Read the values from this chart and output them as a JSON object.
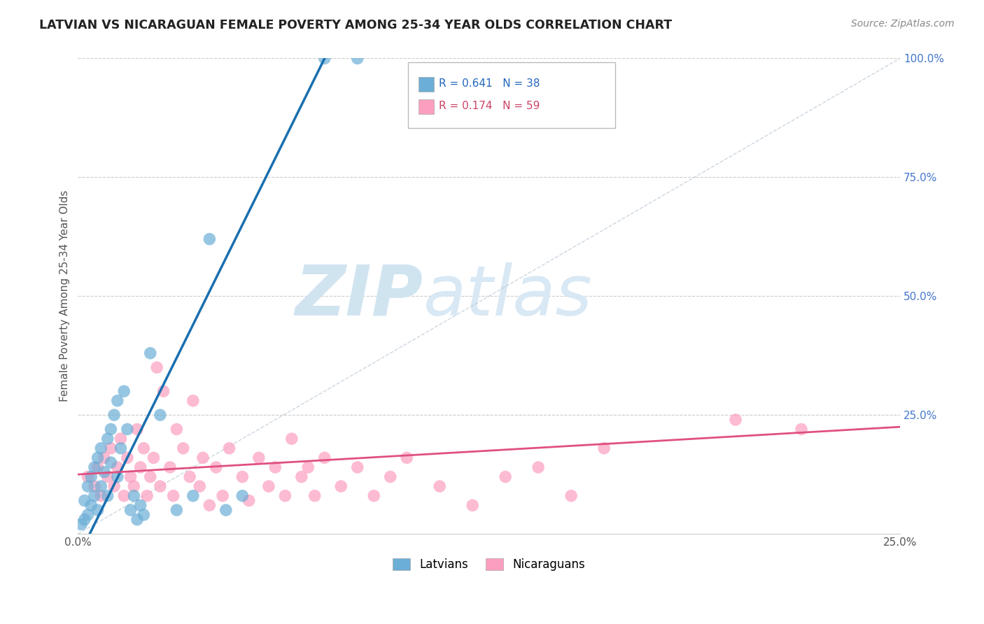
{
  "title": "LATVIAN VS NICARAGUAN FEMALE POVERTY AMONG 25-34 YEAR OLDS CORRELATION CHART",
  "source": "Source: ZipAtlas.com",
  "ylabel": "Female Poverty Among 25-34 Year Olds",
  "xlim": [
    0.0,
    0.25
  ],
  "ylim": [
    0.0,
    1.0
  ],
  "xticks": [
    0.0,
    0.25
  ],
  "xticklabels": [
    "0.0%",
    "25.0%"
  ],
  "yticks_right": [
    0.25,
    0.5,
    0.75,
    1.0
  ],
  "yticklabels_right": [
    "25.0%",
    "50.0%",
    "75.0%",
    "100.0%"
  ],
  "grid_yticks": [
    0.25,
    0.5,
    0.75,
    1.0
  ],
  "latvian_color": "#6baed6",
  "latvian_line_color": "#1a6faf",
  "nicaraguan_color": "#fc9ebf",
  "nicaraguan_line_color": "#e05080",
  "latvian_R": 0.641,
  "latvian_N": 38,
  "nicaraguan_R": 0.174,
  "nicaraguan_N": 59,
  "latvian_scatter": [
    [
      0.001,
      0.02
    ],
    [
      0.002,
      0.03
    ],
    [
      0.002,
      0.07
    ],
    [
      0.003,
      0.04
    ],
    [
      0.003,
      0.1
    ],
    [
      0.004,
      0.06
    ],
    [
      0.004,
      0.12
    ],
    [
      0.005,
      0.08
    ],
    [
      0.005,
      0.14
    ],
    [
      0.006,
      0.05
    ],
    [
      0.006,
      0.16
    ],
    [
      0.007,
      0.18
    ],
    [
      0.007,
      0.1
    ],
    [
      0.008,
      0.13
    ],
    [
      0.009,
      0.2
    ],
    [
      0.009,
      0.08
    ],
    [
      0.01,
      0.22
    ],
    [
      0.01,
      0.15
    ],
    [
      0.011,
      0.25
    ],
    [
      0.012,
      0.12
    ],
    [
      0.012,
      0.28
    ],
    [
      0.013,
      0.18
    ],
    [
      0.014,
      0.3
    ],
    [
      0.015,
      0.22
    ],
    [
      0.016,
      0.05
    ],
    [
      0.017,
      0.08
    ],
    [
      0.018,
      0.03
    ],
    [
      0.019,
      0.06
    ],
    [
      0.02,
      0.04
    ],
    [
      0.022,
      0.38
    ],
    [
      0.025,
      0.25
    ],
    [
      0.03,
      0.05
    ],
    [
      0.035,
      0.08
    ],
    [
      0.04,
      0.62
    ],
    [
      0.045,
      0.05
    ],
    [
      0.05,
      0.08
    ],
    [
      0.075,
      1.0
    ],
    [
      0.085,
      1.0
    ]
  ],
  "nicaraguan_scatter": [
    [
      0.003,
      0.12
    ],
    [
      0.005,
      0.1
    ],
    [
      0.006,
      0.14
    ],
    [
      0.007,
      0.08
    ],
    [
      0.008,
      0.16
    ],
    [
      0.009,
      0.12
    ],
    [
      0.01,
      0.18
    ],
    [
      0.011,
      0.1
    ],
    [
      0.012,
      0.14
    ],
    [
      0.013,
      0.2
    ],
    [
      0.014,
      0.08
    ],
    [
      0.015,
      0.16
    ],
    [
      0.016,
      0.12
    ],
    [
      0.017,
      0.1
    ],
    [
      0.018,
      0.22
    ],
    [
      0.019,
      0.14
    ],
    [
      0.02,
      0.18
    ],
    [
      0.021,
      0.08
    ],
    [
      0.022,
      0.12
    ],
    [
      0.023,
      0.16
    ],
    [
      0.024,
      0.35
    ],
    [
      0.025,
      0.1
    ],
    [
      0.026,
      0.3
    ],
    [
      0.028,
      0.14
    ],
    [
      0.029,
      0.08
    ],
    [
      0.03,
      0.22
    ],
    [
      0.032,
      0.18
    ],
    [
      0.034,
      0.12
    ],
    [
      0.035,
      0.28
    ],
    [
      0.037,
      0.1
    ],
    [
      0.038,
      0.16
    ],
    [
      0.04,
      0.06
    ],
    [
      0.042,
      0.14
    ],
    [
      0.044,
      0.08
    ],
    [
      0.046,
      0.18
    ],
    [
      0.05,
      0.12
    ],
    [
      0.052,
      0.07
    ],
    [
      0.055,
      0.16
    ],
    [
      0.058,
      0.1
    ],
    [
      0.06,
      0.14
    ],
    [
      0.063,
      0.08
    ],
    [
      0.065,
      0.2
    ],
    [
      0.068,
      0.12
    ],
    [
      0.07,
      0.14
    ],
    [
      0.072,
      0.08
    ],
    [
      0.075,
      0.16
    ],
    [
      0.08,
      0.1
    ],
    [
      0.085,
      0.14
    ],
    [
      0.09,
      0.08
    ],
    [
      0.095,
      0.12
    ],
    [
      0.1,
      0.16
    ],
    [
      0.11,
      0.1
    ],
    [
      0.12,
      0.06
    ],
    [
      0.13,
      0.12
    ],
    [
      0.14,
      0.14
    ],
    [
      0.15,
      0.08
    ],
    [
      0.16,
      0.18
    ],
    [
      0.2,
      0.24
    ],
    [
      0.22,
      0.22
    ]
  ],
  "background_color": "#ffffff",
  "grid_color": "#cccccc",
  "watermark_zip": "ZIP",
  "watermark_atlas": "atlas",
  "watermark_color": "#d0e4f0"
}
